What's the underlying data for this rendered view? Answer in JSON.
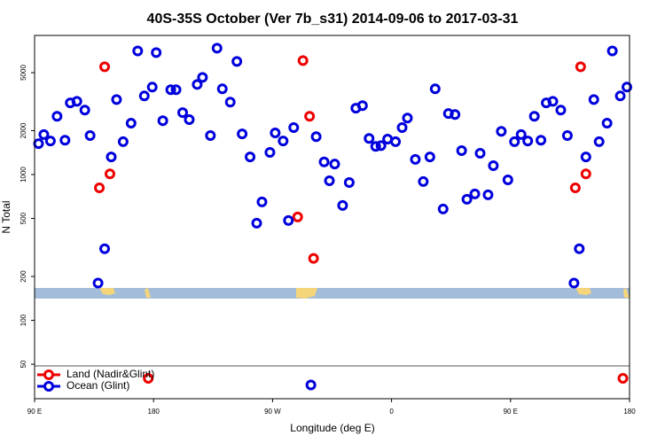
{
  "chart_data": {
    "type": "scatter",
    "title": "40S-35S October (Ver 7b_s31)   2014-09-06 to 2017-03-31",
    "xlabel": "Longitude (deg E)",
    "ylabel": "N Total",
    "xlim": [
      90,
      540
    ],
    "xticks": [
      {
        "value": 90,
        "label": "90 E"
      },
      {
        "value": 180,
        "label": "180"
      },
      {
        "value": 270,
        "label": "90 W"
      },
      {
        "value": 360,
        "label": "0"
      },
      {
        "value": 450,
        "label": "90 E"
      },
      {
        "value": 540,
        "label": "180"
      }
    ],
    "ylim": [
      29,
      9000
    ],
    "yticks": [
      50,
      100,
      200,
      500,
      1000,
      2000,
      5000
    ],
    "log_y": true,
    "legend": "lower left",
    "series": [
      {
        "name": "Land (Nadir&Glint)",
        "color": "#ee0000",
        "x": [
          139,
          143,
          147,
          176,
          289,
          293,
          298,
          301,
          499,
          503,
          507,
          535
        ],
        "values": [
          811,
          5490,
          1010,
          40,
          512,
          6050,
          2510,
          266,
          811,
          5490,
          1010,
          40
        ]
      },
      {
        "name": "Ocean (Glint)",
        "color": "#0000dd",
        "x": [
          93,
          97,
          102,
          107,
          113,
          117,
          122,
          128,
          132,
          138,
          143,
          148,
          152,
          157,
          163,
          168,
          173,
          179,
          182,
          187,
          193,
          197,
          202,
          207,
          213,
          217,
          223,
          228,
          232,
          238,
          243,
          247,
          253,
          258,
          262,
          268,
          272,
          278,
          282,
          286,
          299,
          303,
          309,
          313,
          317,
          323,
          328,
          333,
          338,
          343,
          348,
          352,
          357,
          363,
          368,
          372,
          378,
          384,
          389,
          393,
          399,
          403,
          408,
          413,
          417,
          423,
          427,
          433,
          437,
          443,
          448,
          453,
          458,
          463,
          468,
          473,
          477,
          482,
          488,
          493,
          498,
          502,
          507,
          513,
          517,
          523,
          527,
          533,
          538
        ],
        "values": [
          1630,
          1880,
          1700,
          2510,
          1720,
          3100,
          3180,
          2770,
          1850,
          180,
          310,
          1320,
          3270,
          1680,
          2250,
          7050,
          3460,
          3980,
          6860,
          2340,
          3820,
          3820,
          2660,
          2380,
          4150,
          4640,
          1850,
          7360,
          3870,
          3140,
          5970,
          1900,
          1320,
          464,
          649,
          1420,
          1930,
          1700,
          484,
          2100,
          36,
          1820,
          1220,
          907,
          1180,
          614,
          882,
          2850,
          2970,
          1770,
          1560,
          1580,
          1750,
          1680,
          2100,
          2440,
          1270,
          895,
          1320,
          3870,
          580,
          2620,
          2580,
          1460,
          677,
          736,
          1400,
          726,
          1150,
          1980,
          920,
          1680,
          1880,
          1700,
          2510,
          1720,
          3100,
          3180,
          2770,
          1850,
          180,
          310,
          1320,
          3270,
          1680,
          2250,
          7050,
          3460,
          3980
        ]
      }
    ]
  }
}
